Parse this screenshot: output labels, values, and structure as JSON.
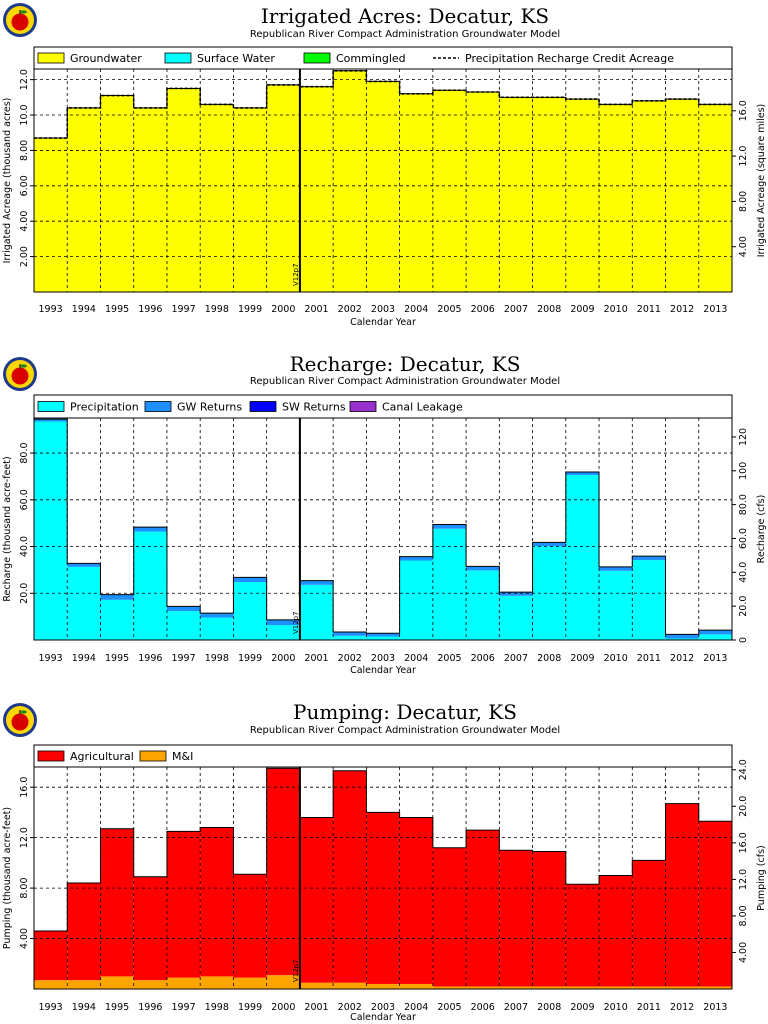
{
  "chart_data": [
    {
      "type": "bar",
      "title": "Irrigated Acres: Decatur, KS",
      "subtitle": "Republican River Compact Administration Groundwater Model",
      "xlabel": "Calendar Year",
      "ylabel": "Irrigated Acreage (thousand acres)",
      "ylabel2": "Irrigated Acreage (square miles)",
      "categories": [
        "1993",
        "1994",
        "1995",
        "1996",
        "1997",
        "1998",
        "1999",
        "2000",
        "2001",
        "2002",
        "2003",
        "2004",
        "2005",
        "2006",
        "2007",
        "2008",
        "2009",
        "2010",
        "2011",
        "2012",
        "2013"
      ],
      "ylim": [
        0,
        12.6
      ],
      "yticks": [
        "2.00",
        "4.00",
        "6.00",
        "8.00",
        "10.0",
        "12.0"
      ],
      "ylim2": [
        0,
        19.69
      ],
      "yticks2": [
        "4.00",
        "8.00",
        "12.0",
        "16.0"
      ],
      "marker_label": "V12p7",
      "marker_after": "2000",
      "legend": [
        "Groundwater",
        "Surface Water",
        "Commingled",
        "Precipitation Recharge Credit Acreage"
      ],
      "series": [
        {
          "name": "Groundwater",
          "color": "#ffff00",
          "values": [
            8.7,
            10.4,
            11.1,
            10.4,
            11.5,
            10.6,
            10.4,
            11.7,
            11.6,
            12.5,
            11.9,
            11.2,
            11.4,
            11.3,
            11.0,
            11.0,
            10.9,
            10.6,
            10.8,
            10.9,
            10.6
          ]
        },
        {
          "name": "Surface Water",
          "color": "#00ffff",
          "values": [
            0,
            0,
            0,
            0,
            0,
            0,
            0,
            0,
            0,
            0,
            0,
            0,
            0,
            0,
            0,
            0,
            0,
            0,
            0,
            0,
            0
          ]
        },
        {
          "name": "Commingled",
          "color": "#00ff00",
          "values": [
            0,
            0,
            0,
            0,
            0,
            0,
            0,
            0,
            0,
            0,
            0,
            0,
            0,
            0,
            0,
            0,
            0,
            0,
            0,
            0,
            0
          ]
        }
      ],
      "line": {
        "name": "Precipitation Recharge Credit Acreage",
        "values": [
          8.7,
          10.4,
          11.1,
          10.4,
          11.5,
          10.6,
          10.4,
          11.7,
          11.6,
          12.5,
          11.9,
          11.2,
          11.4,
          11.3,
          11.0,
          11.0,
          10.9,
          10.6,
          10.8,
          10.9,
          10.6
        ]
      },
      "grid": true,
      "legend_position": "top"
    },
    {
      "type": "bar",
      "title": "Recharge: Decatur, KS",
      "subtitle": "Republican River Compact Administration Groundwater Model",
      "xlabel": "Calendar Year",
      "ylabel": "Recharge (thousand acre-feet)",
      "ylabel2": "Recharge (cfs)",
      "categories": [
        "1993",
        "1994",
        "1995",
        "1996",
        "1997",
        "1998",
        "1999",
        "2000",
        "2001",
        "2002",
        "2003",
        "2004",
        "2005",
        "2006",
        "2007",
        "2008",
        "2009",
        "2010",
        "2011",
        "2012",
        "2013"
      ],
      "ylim": [
        0,
        95
      ],
      "yticks": [
        "20.0",
        "40.0",
        "60.0",
        "80.0"
      ],
      "ylim2": [
        0,
        131.2
      ],
      "yticks2": [
        "0",
        "20.0",
        "40.0",
        "60.0",
        "80.0",
        "100",
        "120"
      ],
      "marker_label": "V12p7",
      "marker_after": "2000",
      "legend": [
        "Precipitation",
        "GW Returns",
        "SW Returns",
        "Canal Leakage"
      ],
      "series": [
        {
          "name": "Precipitation",
          "color": "#00ffff",
          "values": [
            93.5,
            31.3,
            17.2,
            46.4,
            12.4,
            9.6,
            24.8,
            6.4,
            23.6,
            1.8,
            1.5,
            34.0,
            47.6,
            29.8,
            18.9,
            40.2,
            70.6,
            29.6,
            34.2,
            0.6,
            2.4
          ]
        },
        {
          "name": "GW Returns",
          "color": "#1e90ff",
          "values": [
            1.0,
            1.5,
            2.2,
            1.9,
            2.0,
            1.9,
            2.0,
            2.2,
            1.8,
            1.6,
            1.4,
            1.7,
            1.8,
            1.7,
            1.6,
            1.6,
            1.3,
            1.7,
            1.7,
            1.8,
            1.8
          ]
        },
        {
          "name": "SW Returns",
          "color": "#0000ff",
          "values": [
            0,
            0,
            0,
            0,
            0,
            0,
            0,
            0,
            0,
            0,
            0,
            0,
            0,
            0,
            0,
            0,
            0,
            0,
            0,
            0,
            0
          ]
        },
        {
          "name": "Canal Leakage",
          "color": "#9932cc",
          "values": [
            0,
            0,
            0,
            0,
            0,
            0,
            0,
            0,
            0,
            0,
            0,
            0,
            0,
            0,
            0,
            0,
            0,
            0,
            0,
            0,
            0
          ]
        }
      ],
      "grid": true,
      "legend_position": "top"
    },
    {
      "type": "bar",
      "title": "Pumping: Decatur, KS",
      "subtitle": "Republican River Compact Administration Groundwater Model",
      "xlabel": "Calendar Year",
      "ylabel": "Pumping (thousand acre-feet)",
      "ylabel2": "Pumping (cfs)",
      "categories": [
        "1993",
        "1994",
        "1995",
        "1996",
        "1997",
        "1998",
        "1999",
        "2000",
        "2001",
        "2002",
        "2003",
        "2004",
        "2005",
        "2006",
        "2007",
        "2008",
        "2009",
        "2010",
        "2011",
        "2012",
        "2013"
      ],
      "ylim": [
        0,
        17.6
      ],
      "yticks": [
        "4.00",
        "8.00",
        "12.0",
        "16.0"
      ],
      "ylim2": [
        0,
        24.3
      ],
      "yticks2": [
        "4.00",
        "8.00",
        "12.0",
        "16.0",
        "20.0",
        "24.0"
      ],
      "marker_label": "V12p7",
      "marker_after": "2000",
      "legend": [
        "Agricultural",
        "M&I"
      ],
      "series": [
        {
          "name": "M&I",
          "color": "#ffa500",
          "values": [
            0.7,
            0.7,
            1.0,
            0.7,
            0.9,
            1.0,
            0.9,
            1.1,
            0.5,
            0.5,
            0.4,
            0.4,
            0.2,
            0.2,
            0.2,
            0.2,
            0.2,
            0.2,
            0.2,
            0.2,
            0.2
          ]
        },
        {
          "name": "Agricultural",
          "color": "#ff0000",
          "values": [
            3.9,
            7.7,
            11.7,
            8.2,
            11.6,
            11.8,
            8.2,
            16.4,
            13.1,
            16.8,
            13.6,
            13.2,
            11.0,
            12.4,
            10.8,
            10.7,
            8.1,
            8.8,
            10.0,
            14.5,
            13.1
          ]
        }
      ],
      "grid": true,
      "legend_position": "top"
    }
  ]
}
